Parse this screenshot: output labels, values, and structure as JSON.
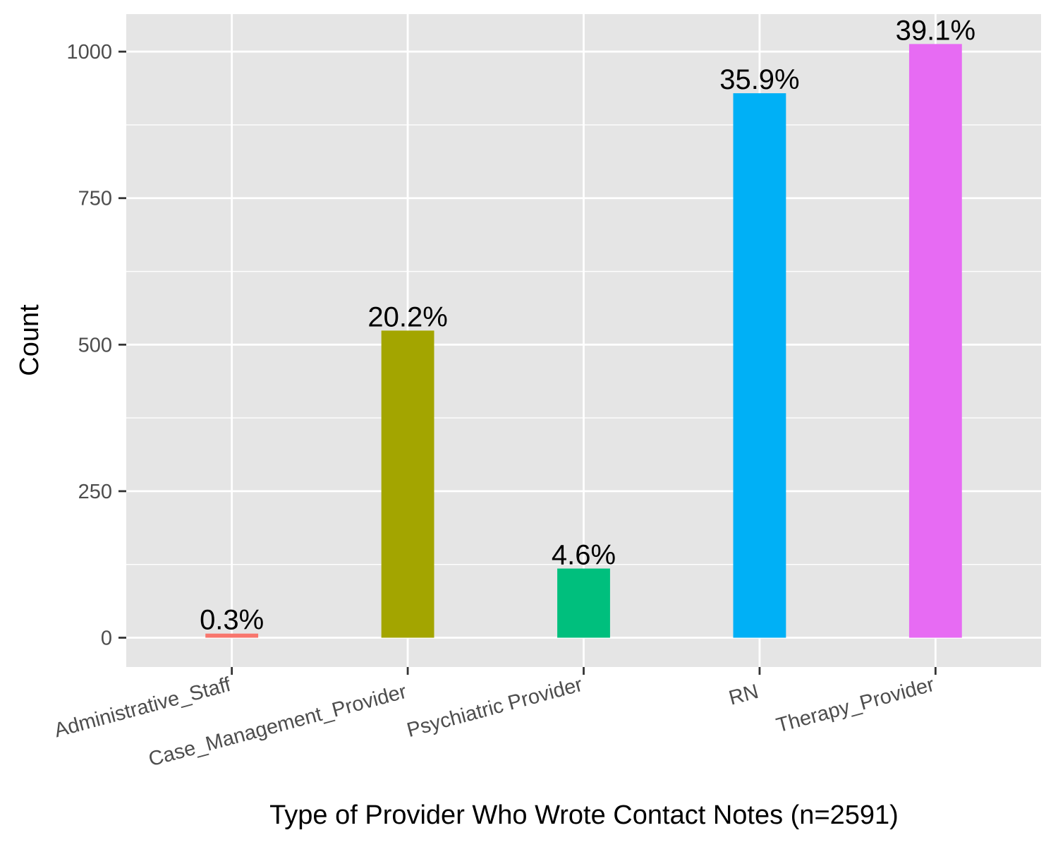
{
  "chart_data": {
    "type": "bar",
    "categories": [
      "Administrative_Staff",
      "Case_Management_Provider",
      "Psychiatric Provider",
      "RN",
      "Therapy_Provider"
    ],
    "values": [
      7,
      524,
      118,
      929,
      1013
    ],
    "data_labels": [
      "0.3%",
      "20.2%",
      "4.6%",
      "35.9%",
      "39.1%"
    ],
    "colors": [
      "#F8766D",
      "#A3A500",
      "#00BF7D",
      "#00B0F6",
      "#E76BF3"
    ],
    "xlabel": "Type of Provider Who Wrote Contact Notes (n=2591)",
    "ylabel": "Count",
    "yticks": [
      0,
      250,
      500,
      750,
      1000
    ],
    "ylim": [
      -50,
      1064
    ],
    "grid": true,
    "panel_background": "#e5e5e5",
    "legend": "none"
  }
}
